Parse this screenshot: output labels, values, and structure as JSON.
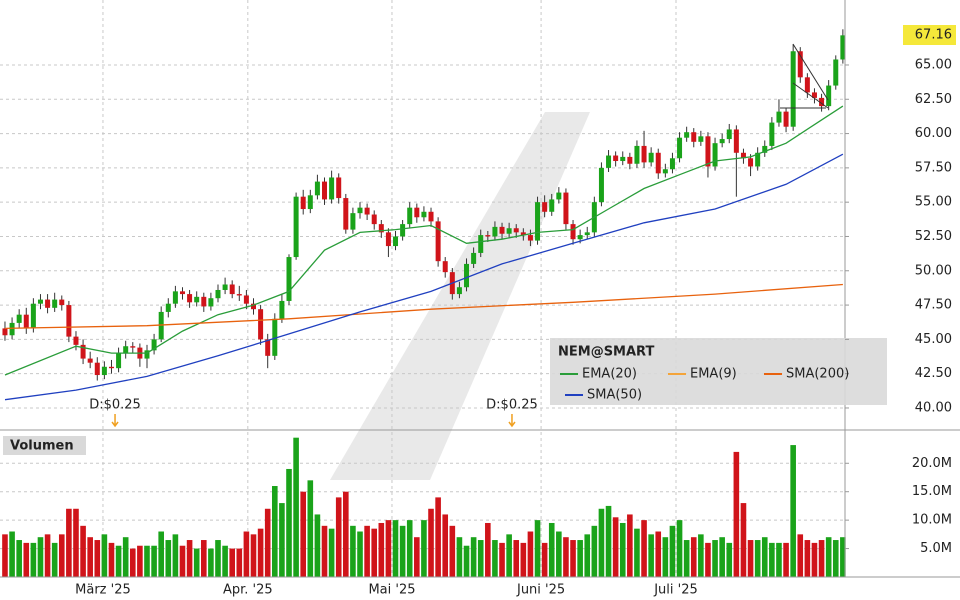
{
  "chart_data": {
    "type": "candlestick",
    "title": "NEM@SMART",
    "volume_title": "Volumen",
    "up_color": "#1aa31a",
    "down_color": "#d0141a",
    "xlim": [
      -0.7,
      118.3
    ],
    "xticks": [
      {
        "value": 13.8,
        "label": "März '25"
      },
      {
        "value": 34.2,
        "label": "Apr. '25"
      },
      {
        "value": 54.5,
        "label": "Mai '25"
      },
      {
        "value": 75.5,
        "label": "Juni '25"
      },
      {
        "value": 94.5,
        "label": "Juli '25"
      }
    ],
    "ylim": [
      38.54,
      69.59
    ],
    "yticks": [
      {
        "value": 40,
        "label": "40.00"
      },
      {
        "value": 42.5,
        "label": "42.50"
      },
      {
        "value": 45,
        "label": "45.00"
      },
      {
        "value": 47.5,
        "label": "47.50"
      },
      {
        "value": 50,
        "label": "50.00"
      },
      {
        "value": 52.5,
        "label": "52.50"
      },
      {
        "value": 55,
        "label": "55.00"
      },
      {
        "value": 57.5,
        "label": "57.50"
      },
      {
        "value": 60,
        "label": "60.00"
      },
      {
        "value": 62.5,
        "label": "62.50"
      },
      {
        "value": 65,
        "label": "65.00"
      }
    ],
    "volume_ylim": [
      0,
      25.5
    ],
    "volume_yticks": [
      {
        "value": 5,
        "label": "5.0M"
      },
      {
        "value": 10,
        "label": "10.0M"
      },
      {
        "value": 15,
        "label": "15.0M"
      },
      {
        "value": 20,
        "label": "20.0M"
      }
    ],
    "grid": true,
    "ohlc": [
      [
        45.8,
        46.3,
        44.9,
        45.3
      ],
      [
        45.3,
        46.6,
        45.0,
        46.2
      ],
      [
        46.2,
        47.2,
        45.8,
        46.8
      ],
      [
        46.8,
        47.3,
        45.4,
        45.8
      ],
      [
        45.8,
        48.0,
        45.5,
        47.6
      ],
      [
        47.6,
        48.3,
        47.2,
        47.9
      ],
      [
        47.9,
        48.3,
        46.9,
        47.3
      ],
      [
        47.3,
        48.4,
        47.0,
        47.9
      ],
      [
        47.9,
        48.2,
        47.1,
        47.5
      ],
      [
        47.5,
        47.8,
        44.8,
        45.2
      ],
      [
        45.2,
        45.6,
        44.2,
        44.6
      ],
      [
        44.6,
        45.0,
        43.2,
        43.6
      ],
      [
        43.6,
        44.1,
        42.9,
        43.3
      ],
      [
        43.3,
        43.7,
        42.0,
        42.4
      ],
      [
        42.4,
        43.4,
        42.1,
        43.0
      ],
      [
        43.0,
        43.5,
        42.5,
        42.9
      ],
      [
        42.9,
        44.4,
        42.6,
        44.0
      ],
      [
        44.0,
        44.9,
        43.6,
        44.5
      ],
      [
        44.5,
        44.8,
        44.0,
        44.4
      ],
      [
        44.4,
        44.7,
        43.0,
        43.6
      ],
      [
        43.6,
        44.6,
        42.9,
        44.2
      ],
      [
        44.2,
        45.4,
        43.9,
        45.0
      ],
      [
        45.0,
        47.4,
        44.8,
        47.0
      ],
      [
        47.0,
        48.0,
        46.6,
        47.6
      ],
      [
        47.6,
        48.9,
        47.3,
        48.5
      ],
      [
        48.5,
        48.8,
        47.9,
        48.3
      ],
      [
        48.3,
        48.6,
        47.3,
        47.7
      ],
      [
        47.7,
        48.5,
        47.4,
        48.1
      ],
      [
        48.1,
        48.4,
        47.0,
        47.4
      ],
      [
        47.4,
        48.4,
        47.1,
        48.0
      ],
      [
        48.0,
        49.0,
        47.7,
        48.6
      ],
      [
        48.6,
        49.5,
        48.3,
        49.0
      ],
      [
        49.0,
        49.3,
        48.0,
        48.3
      ],
      [
        48.3,
        48.9,
        47.8,
        48.2
      ],
      [
        48.2,
        48.6,
        47.2,
        47.6
      ],
      [
        47.6,
        48.0,
        46.8,
        47.2
      ],
      [
        47.2,
        47.5,
        44.6,
        45.0
      ],
      [
        45.0,
        45.4,
        42.9,
        43.8
      ],
      [
        43.8,
        46.9,
        43.5,
        46.5
      ],
      [
        46.5,
        48.3,
        46.2,
        47.8
      ],
      [
        47.8,
        51.2,
        47.5,
        51.0
      ],
      [
        51.0,
        55.7,
        50.8,
        55.4
      ],
      [
        55.4,
        55.9,
        54.1,
        54.5
      ],
      [
        54.5,
        55.9,
        54.2,
        55.5
      ],
      [
        55.5,
        57.0,
        55.2,
        56.5
      ],
      [
        56.5,
        56.8,
        54.8,
        55.2
      ],
      [
        55.2,
        57.3,
        54.9,
        56.8
      ],
      [
        56.8,
        57.1,
        54.9,
        55.3
      ],
      [
        55.3,
        55.6,
        52.7,
        53.0
      ],
      [
        53.0,
        54.6,
        52.7,
        54.2
      ],
      [
        54.2,
        55.0,
        53.8,
        54.6
      ],
      [
        54.6,
        54.9,
        53.7,
        54.1
      ],
      [
        54.1,
        54.4,
        53.0,
        53.4
      ],
      [
        53.4,
        53.7,
        52.4,
        52.8
      ],
      [
        52.8,
        53.1,
        51.0,
        51.8
      ],
      [
        51.8,
        52.9,
        51.5,
        52.5
      ],
      [
        52.5,
        53.7,
        52.2,
        53.4
      ],
      [
        53.4,
        55.0,
        53.1,
        54.6
      ],
      [
        54.6,
        54.9,
        53.5,
        53.9
      ],
      [
        53.9,
        54.7,
        53.6,
        54.3
      ],
      [
        54.3,
        54.6,
        53.2,
        53.6
      ],
      [
        53.6,
        53.9,
        50.3,
        50.7
      ],
      [
        50.7,
        51.0,
        49.5,
        49.9
      ],
      [
        49.9,
        50.2,
        47.9,
        48.3
      ],
      [
        48.3,
        49.2,
        48.0,
        48.8
      ],
      [
        48.8,
        50.9,
        48.5,
        50.5
      ],
      [
        50.5,
        51.7,
        50.2,
        51.3
      ],
      [
        51.3,
        53.0,
        51.0,
        52.6
      ],
      [
        52.6,
        52.9,
        52.1,
        52.5
      ],
      [
        52.5,
        53.6,
        52.2,
        53.2
      ],
      [
        53.2,
        53.5,
        52.3,
        52.7
      ],
      [
        52.7,
        53.5,
        52.4,
        53.1
      ],
      [
        53.1,
        53.4,
        52.4,
        52.8
      ],
      [
        52.8,
        53.1,
        52.2,
        52.6
      ],
      [
        52.6,
        53.0,
        51.8,
        52.2
      ],
      [
        52.2,
        55.4,
        51.9,
        55.0
      ],
      [
        55.0,
        55.5,
        53.9,
        54.3
      ],
      [
        54.3,
        55.6,
        54.0,
        55.2
      ],
      [
        55.2,
        56.1,
        54.9,
        55.7
      ],
      [
        55.7,
        56.0,
        53.0,
        53.4
      ],
      [
        53.4,
        53.7,
        51.9,
        52.3
      ],
      [
        52.3,
        53.0,
        52.0,
        52.6
      ],
      [
        52.6,
        53.2,
        52.3,
        52.8
      ],
      [
        52.8,
        55.4,
        52.5,
        55.0
      ],
      [
        55.0,
        57.9,
        54.7,
        57.5
      ],
      [
        57.5,
        58.8,
        57.2,
        58.4
      ],
      [
        58.4,
        58.7,
        57.6,
        58.0
      ],
      [
        58.0,
        58.7,
        57.7,
        58.3
      ],
      [
        58.3,
        58.6,
        57.4,
        57.8
      ],
      [
        57.8,
        59.5,
        57.5,
        59.1
      ],
      [
        59.1,
        60.2,
        57.5,
        57.9
      ],
      [
        57.9,
        59.0,
        57.6,
        58.6
      ],
      [
        58.6,
        58.9,
        56.7,
        57.1
      ],
      [
        57.1,
        57.8,
        56.8,
        57.4
      ],
      [
        57.4,
        58.6,
        57.1,
        58.2
      ],
      [
        58.2,
        60.1,
        57.9,
        59.7
      ],
      [
        59.7,
        60.5,
        59.4,
        60.1
      ],
      [
        60.1,
        60.4,
        59.0,
        59.4
      ],
      [
        59.4,
        60.2,
        59.1,
        59.8
      ],
      [
        59.8,
        60.1,
        56.8,
        57.6
      ],
      [
        57.6,
        59.7,
        57.3,
        59.3
      ],
      [
        59.3,
        60.0,
        59.0,
        59.6
      ],
      [
        59.6,
        60.7,
        59.3,
        60.3
      ],
      [
        60.3,
        60.6,
        55.4,
        58.6
      ],
      [
        58.6,
        58.9,
        57.8,
        58.2
      ],
      [
        58.2,
        58.5,
        56.9,
        57.6
      ],
      [
        57.6,
        59.0,
        57.3,
        58.6
      ],
      [
        58.6,
        59.5,
        58.3,
        59.1
      ],
      [
        59.1,
        61.2,
        58.8,
        60.8
      ],
      [
        60.8,
        62.5,
        60.5,
        61.6
      ],
      [
        61.6,
        61.9,
        60.1,
        60.5
      ],
      [
        60.5,
        66.5,
        60.2,
        66.0
      ],
      [
        66.0,
        66.3,
        63.7,
        64.1
      ],
      [
        64.1,
        64.4,
        62.6,
        63.0
      ],
      [
        63.0,
        63.3,
        62.2,
        62.6
      ],
      [
        62.6,
        62.9,
        61.6,
        62.0
      ],
      [
        62.0,
        63.9,
        61.7,
        63.5
      ],
      [
        63.5,
        65.7,
        63.2,
        65.4
      ],
      [
        65.4,
        67.6,
        65.1,
        67.16
      ]
    ],
    "volume": [
      7.5,
      8,
      6.5,
      6,
      6,
      7,
      7.5,
      6,
      7.5,
      12,
      12,
      9,
      7,
      6.5,
      7.5,
      6,
      5.5,
      7,
      5,
      5.5,
      5.5,
      5.5,
      8,
      6.5,
      7.5,
      5.5,
      6.5,
      5,
      6.5,
      5,
      6.5,
      5.5,
      5,
      5,
      8,
      7.5,
      8.5,
      12,
      16,
      13,
      19,
      24.5,
      15,
      17,
      11,
      9,
      8.5,
      14,
      15,
      9,
      8,
      9,
      8.5,
      9.5,
      10,
      10,
      9,
      10,
      7,
      10,
      12,
      14,
      11,
      9,
      7,
      5.5,
      7,
      6.5,
      9.5,
      6.5,
      6,
      7.5,
      6.5,
      6,
      8,
      10,
      6,
      9.5,
      8,
      7,
      6.5,
      6.5,
      7.5,
      9,
      12,
      12.5,
      10.5,
      9.5,
      11,
      8.5,
      10,
      7.5,
      8,
      7,
      9,
      10,
      6.5,
      7,
      7.5,
      6,
      6.5,
      7,
      6,
      22,
      13,
      6.5,
      6.5,
      7,
      6,
      6,
      6,
      23.2,
      7.5,
      6.5,
      6,
      6.5,
      7,
      6.5,
      7
    ],
    "series": [
      {
        "name": "EMA(20)",
        "color": "#2a9d3a",
        "x": [
          0,
          10,
          15,
          20,
          25,
          30,
          35,
          40,
          45,
          50,
          55,
          60,
          65,
          70,
          75,
          80,
          85,
          90,
          95,
          100,
          105,
          110,
          115,
          118
        ],
        "values": [
          42.4,
          44.5,
          44.0,
          44.0,
          45.6,
          46.8,
          47.5,
          48.5,
          51.5,
          52.8,
          53.0,
          53.3,
          52.0,
          52.3,
          52.8,
          53.0,
          54.5,
          56.0,
          57.0,
          58.0,
          58.3,
          59.3,
          61.0,
          62.0
        ]
      },
      {
        "name": "EMA(9)",
        "color": "#f4a43a"
      },
      {
        "name": "SMA(200)",
        "color": "#e8620e",
        "x": [
          0,
          20,
          40,
          60,
          80,
          100,
          118
        ],
        "values": [
          45.8,
          46.0,
          46.5,
          47.2,
          47.7,
          48.3,
          49.0
        ]
      },
      {
        "name": "SMA(50)",
        "color": "#2040c0",
        "x": [
          0,
          10,
          20,
          30,
          40,
          50,
          60,
          70,
          80,
          90,
          100,
          110,
          118
        ],
        "values": [
          40.6,
          41.3,
          42.3,
          43.8,
          45.4,
          47.0,
          48.5,
          50.5,
          52.0,
          53.5,
          54.5,
          56.3,
          58.5
        ]
      }
    ],
    "annotations": [
      {
        "text": "D:$0.25",
        "x": 15.5
      },
      {
        "text": "D:$0.25",
        "x": 71.4
      }
    ]
  }
}
